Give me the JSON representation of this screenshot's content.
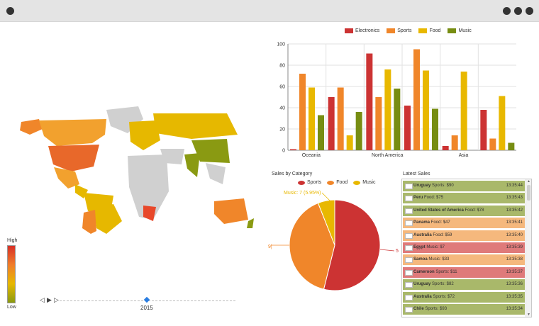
{
  "bar_legend": [
    {
      "label": "Electronics",
      "color": "#cc3333"
    },
    {
      "label": "Sports",
      "color": "#f0862a"
    },
    {
      "label": "Food",
      "color": "#e8b800"
    },
    {
      "label": "Music",
      "color": "#778d12"
    }
  ],
  "chart_data": [
    {
      "type": "bar",
      "categories": [
        "Oceania",
        "",
        "North America",
        "",
        "Asia",
        ""
      ],
      "series": [
        {
          "name": "Electronics",
          "values": [
            1,
            50,
            91,
            42,
            4,
            38
          ]
        },
        {
          "name": "Sports",
          "values": [
            72,
            59,
            50,
            95,
            14,
            11
          ]
        },
        {
          "name": "Food",
          "values": [
            59,
            14,
            76,
            75,
            74,
            51
          ]
        },
        {
          "name": "Music",
          "values": [
            33,
            36,
            58,
            39,
            0,
            7
          ]
        }
      ],
      "ylim": [
        0,
        100
      ],
      "yticks": [
        "0",
        "20",
        "40",
        "60",
        "80",
        "100"
      ]
    },
    {
      "type": "pie",
      "title": "Sales by Category",
      "categories": [
        "Sports",
        "Food",
        "Music"
      ],
      "values": [
        53.9,
        40.1,
        6.0
      ],
      "labels": [
        "5",
        "9|",
        "Music: 7 (5.95%)"
      ]
    }
  ],
  "pie_legend": [
    {
      "label": "Sports",
      "color": "#cc3333"
    },
    {
      "label": "Food",
      "color": "#f0862a"
    },
    {
      "label": "Music",
      "color": "#e8b800"
    }
  ],
  "map": {
    "legend_high": "High",
    "legend_low": "Low",
    "year": "2015"
  },
  "timeline_buttons": [
    "◁",
    "▶",
    "▷"
  ],
  "latest_sales": {
    "title": "Latest Sales",
    "rows": [
      {
        "country": "Uruguay",
        "detail": "Sports: $90",
        "time": "13:35:44",
        "color": "#a9b86a"
      },
      {
        "country": "Peru",
        "detail": "Food: $75",
        "time": "13:35:43",
        "color": "#a9b86a"
      },
      {
        "country": "United States of America",
        "detail": "Food: $78",
        "time": "13:35:42",
        "color": "#a9b86a"
      },
      {
        "country": "Panama",
        "detail": "Food: $47",
        "time": "13:35:41",
        "color": "#f5b87d"
      },
      {
        "country": "Australia",
        "detail": "Food: $59",
        "time": "13:35:40",
        "color": "#f5b87d"
      },
      {
        "country": "Egypt",
        "detail": "Music: $7",
        "time": "13:35:39",
        "color": "#df7a7a"
      },
      {
        "country": "Samoa",
        "detail": "Music: $33",
        "time": "13:35:38",
        "color": "#f5b87d"
      },
      {
        "country": "Cameroon",
        "detail": "Sports: $11",
        "time": "13:35:37",
        "color": "#df7a7a"
      },
      {
        "country": "Uruguay",
        "detail": "Sports: $82",
        "time": "13:35:36",
        "color": "#a9b86a"
      },
      {
        "country": "Australia",
        "detail": "Sports: $72",
        "time": "13:35:35",
        "color": "#a9b86a"
      },
      {
        "country": "Chile",
        "detail": "Sports: $93",
        "time": "13:35:34",
        "color": "#a9b86a"
      }
    ]
  }
}
